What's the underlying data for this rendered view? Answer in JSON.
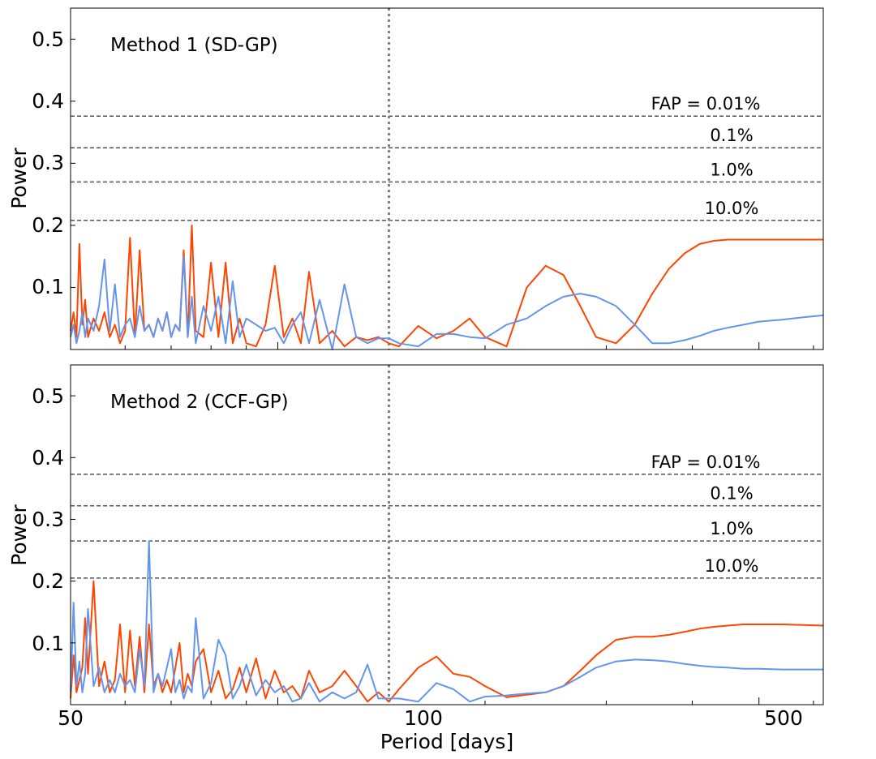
{
  "figure": {
    "xlabel": "Period [days]",
    "ylabel": "Power",
    "x_tick_labels": [
      "50",
      "100",
      "500"
    ],
    "y_tick_labels": [
      "0.1",
      "0.2",
      "0.3",
      "0.4",
      "0.5"
    ]
  },
  "chart_data": [
    {
      "type": "line",
      "label": "Method 1 (SD-GP)",
      "xscale": "log",
      "xlim": [
        50,
        620
      ],
      "ylim": [
        0,
        0.55
      ],
      "xlabel": "",
      "ylabel": "Power",
      "colors": {
        "series_a": "#ff4500",
        "series_b": "#6495ed"
      },
      "vline": {
        "x": 145,
        "style": "dotted",
        "color": "#808080"
      },
      "fap_lines": [
        {
          "label": "FAP = 0.01%",
          "y": 0.376
        },
        {
          "label": "0.1%",
          "y": 0.325
        },
        {
          "label": "1.0%",
          "y": 0.27
        },
        {
          "label": "10.0%",
          "y": 0.208
        }
      ],
      "series": [
        {
          "color": "#ff4500",
          "x": [
            50,
            50.5,
            51,
            51.5,
            52,
            52.5,
            53,
            54,
            55,
            56,
            57,
            58,
            59,
            60,
            61,
            62,
            63,
            64,
            65,
            66,
            67,
            68,
            69,
            70,
            71,
            72,
            73,
            74,
            75,
            76,
            78,
            80,
            82,
            84,
            86,
            88,
            90,
            93,
            96,
            99,
            102,
            105,
            108,
            111,
            115,
            120,
            125,
            130,
            135,
            140,
            145,
            150,
            160,
            170,
            180,
            190,
            200,
            215,
            230,
            245,
            260,
            275,
            290,
            310,
            330,
            350,
            370,
            390,
            410,
            430,
            450,
            475,
            500,
            540,
            580,
            620
          ],
          "values": [
            0.03,
            0.06,
            0.02,
            0.17,
            0.04,
            0.08,
            0.02,
            0.05,
            0.03,
            0.06,
            0.02,
            0.04,
            0.01,
            0.03,
            0.18,
            0.02,
            0.16,
            0.03,
            0.04,
            0.02,
            0.05,
            0.03,
            0.06,
            0.02,
            0.04,
            0.03,
            0.16,
            0.02,
            0.2,
            0.03,
            0.02,
            0.14,
            0.02,
            0.14,
            0.01,
            0.05,
            0.01,
            0.005,
            0.04,
            0.135,
            0.02,
            0.05,
            0.01,
            0.125,
            0.01,
            0.03,
            0.005,
            0.02,
            0.015,
            0.02,
            0.01,
            0.005,
            0.038,
            0.018,
            0.03,
            0.05,
            0.02,
            0.005,
            0.1,
            0.135,
            0.12,
            0.07,
            0.02,
            0.01,
            0.04,
            0.09,
            0.13,
            0.155,
            0.17,
            0.175,
            0.177,
            0.177,
            0.177,
            0.177,
            0.177,
            0.177
          ]
        },
        {
          "color": "#6495ed",
          "x": [
            50,
            50.5,
            51,
            51.5,
            52,
            52.5,
            53,
            54,
            55,
            56,
            57,
            58,
            59,
            60,
            61,
            62,
            63,
            64,
            65,
            66,
            67,
            68,
            69,
            70,
            71,
            72,
            73,
            74,
            75,
            76,
            78,
            80,
            82,
            84,
            86,
            88,
            90,
            93,
            96,
            99,
            102,
            105,
            108,
            111,
            115,
            120,
            125,
            130,
            135,
            140,
            145,
            150,
            160,
            170,
            180,
            190,
            200,
            215,
            230,
            245,
            260,
            275,
            290,
            310,
            330,
            350,
            370,
            390,
            410,
            430,
            450,
            475,
            500,
            540,
            580,
            620
          ],
          "values": [
            0.02,
            0.04,
            0.01,
            0.03,
            0.06,
            0.02,
            0.05,
            0.03,
            0.07,
            0.145,
            0.03,
            0.105,
            0.02,
            0.04,
            0.05,
            0.02,
            0.07,
            0.03,
            0.04,
            0.02,
            0.05,
            0.03,
            0.06,
            0.02,
            0.04,
            0.03,
            0.15,
            0.02,
            0.085,
            0.01,
            0.07,
            0.03,
            0.085,
            0.01,
            0.11,
            0.02,
            0.05,
            0.04,
            0.03,
            0.035,
            0.01,
            0.04,
            0.06,
            0.01,
            0.08,
            0.0,
            0.105,
            0.02,
            0.01,
            0.018,
            0.018,
            0.01,
            0.005,
            0.025,
            0.025,
            0.02,
            0.018,
            0.04,
            0.05,
            0.07,
            0.085,
            0.09,
            0.085,
            0.07,
            0.04,
            0.01,
            0.01,
            0.015,
            0.022,
            0.03,
            0.035,
            0.04,
            0.045,
            0.048,
            0.052,
            0.055
          ]
        }
      ]
    },
    {
      "type": "line",
      "label": "Method 2 (CCF-GP)",
      "xscale": "log",
      "xlim": [
        50,
        620
      ],
      "ylim": [
        0,
        0.55
      ],
      "xlabel": "Period [days]",
      "ylabel": "Power",
      "colors": {
        "series_a": "#ff4500",
        "series_b": "#6495ed"
      },
      "vline": {
        "x": 145,
        "style": "dotted",
        "color": "#808080"
      },
      "fap_lines": [
        {
          "label": "FAP = 0.01%",
          "y": 0.373
        },
        {
          "label": "0.1%",
          "y": 0.322
        },
        {
          "label": "1.0%",
          "y": 0.265
        },
        {
          "label": "10.0%",
          "y": 0.205
        }
      ],
      "series": [
        {
          "color": "#ff4500",
          "x": [
            50,
            50.5,
            51,
            51.5,
            52,
            52.5,
            53,
            54,
            55,
            56,
            57,
            58,
            59,
            60,
            61,
            62,
            63,
            64,
            65,
            66,
            67,
            68,
            69,
            70,
            71,
            72,
            73,
            74,
            75,
            76,
            78,
            80,
            82,
            84,
            86,
            88,
            90,
            93,
            96,
            99,
            102,
            105,
            108,
            111,
            115,
            120,
            125,
            130,
            135,
            140,
            145,
            150,
            160,
            170,
            180,
            190,
            200,
            215,
            230,
            245,
            260,
            275,
            290,
            310,
            330,
            350,
            370,
            390,
            410,
            430,
            450,
            475,
            500,
            540,
            580,
            620
          ],
          "values": [
            0.01,
            0.08,
            0.02,
            0.04,
            0.06,
            0.14,
            0.05,
            0.2,
            0.03,
            0.07,
            0.02,
            0.04,
            0.13,
            0.02,
            0.12,
            0.03,
            0.11,
            0.02,
            0.13,
            0.03,
            0.05,
            0.02,
            0.04,
            0.02,
            0.06,
            0.1,
            0.02,
            0.05,
            0.03,
            0.07,
            0.09,
            0.02,
            0.055,
            0.01,
            0.025,
            0.06,
            0.02,
            0.075,
            0.01,
            0.055,
            0.02,
            0.03,
            0.01,
            0.055,
            0.02,
            0.03,
            0.055,
            0.03,
            0.005,
            0.02,
            0.005,
            0.025,
            0.06,
            0.078,
            0.05,
            0.045,
            0.03,
            0.012,
            0.016,
            0.02,
            0.03,
            0.055,
            0.08,
            0.105,
            0.11,
            0.11,
            0.113,
            0.118,
            0.123,
            0.126,
            0.128,
            0.13,
            0.13,
            0.13,
            0.129,
            0.128
          ]
        },
        {
          "color": "#6495ed",
          "x": [
            50,
            50.5,
            51,
            51.5,
            52,
            52.5,
            53,
            54,
            55,
            56,
            57,
            58,
            59,
            60,
            61,
            62,
            63,
            64,
            65,
            66,
            67,
            68,
            69,
            70,
            71,
            72,
            73,
            74,
            75,
            76,
            78,
            80,
            82,
            84,
            86,
            88,
            90,
            93,
            96,
            99,
            102,
            105,
            108,
            111,
            115,
            120,
            125,
            130,
            135,
            140,
            145,
            150,
            160,
            170,
            180,
            190,
            200,
            215,
            230,
            245,
            260,
            275,
            290,
            310,
            330,
            350,
            370,
            390,
            410,
            430,
            450,
            475,
            500,
            540,
            580,
            620
          ],
          "values": [
            0.02,
            0.165,
            0.03,
            0.07,
            0.02,
            0.05,
            0.155,
            0.03,
            0.06,
            0.02,
            0.04,
            0.02,
            0.05,
            0.03,
            0.04,
            0.02,
            0.09,
            0.03,
            0.265,
            0.02,
            0.05,
            0.03,
            0.06,
            0.09,
            0.02,
            0.04,
            0.01,
            0.03,
            0.02,
            0.14,
            0.01,
            0.035,
            0.105,
            0.08,
            0.01,
            0.03,
            0.065,
            0.015,
            0.04,
            0.02,
            0.03,
            0.005,
            0.01,
            0.035,
            0.005,
            0.02,
            0.01,
            0.02,
            0.065,
            0.01,
            0.01,
            0.01,
            0.005,
            0.035,
            0.025,
            0.005,
            0.013,
            0.015,
            0.018,
            0.02,
            0.03,
            0.045,
            0.06,
            0.07,
            0.073,
            0.072,
            0.07,
            0.066,
            0.063,
            0.061,
            0.06,
            0.058,
            0.058,
            0.057,
            0.057,
            0.057
          ]
        }
      ]
    }
  ]
}
